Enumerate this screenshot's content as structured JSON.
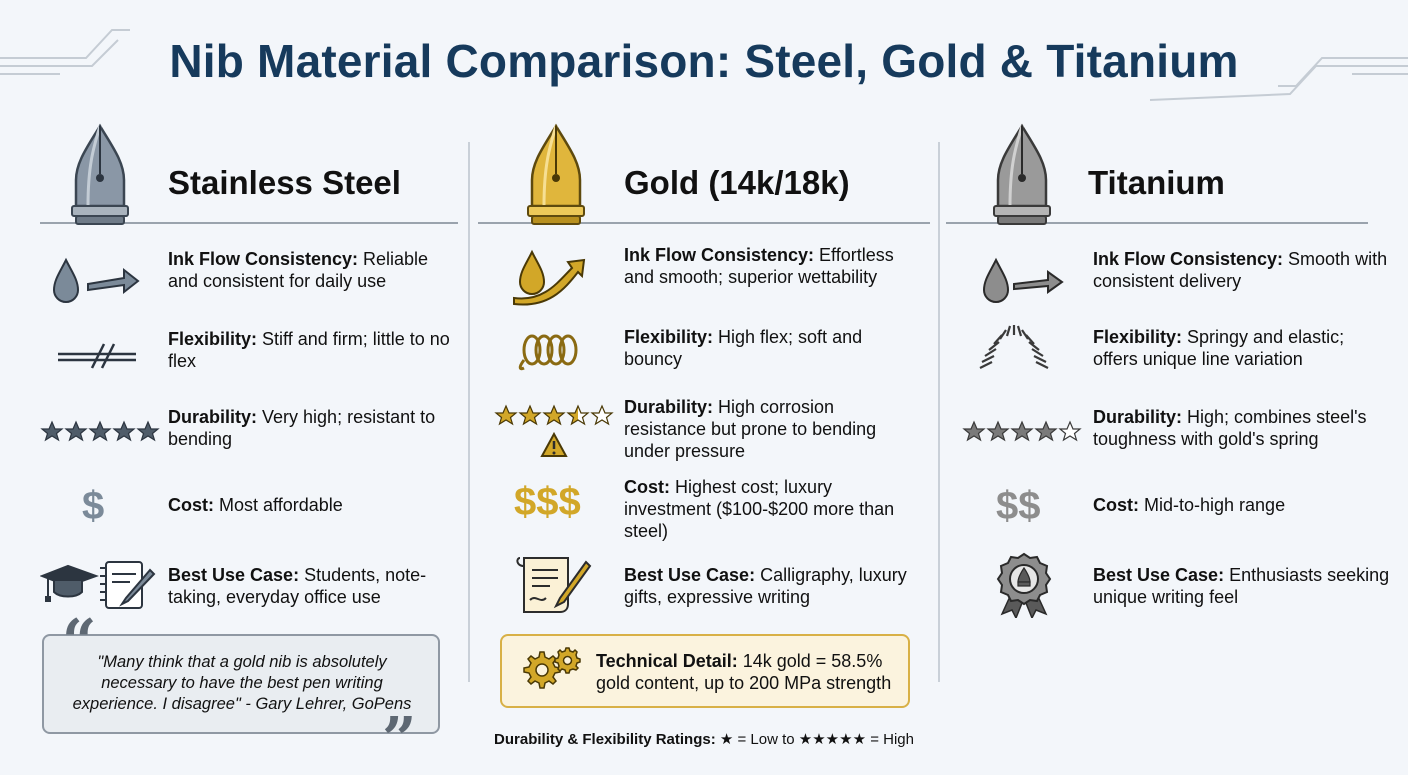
{
  "title": "Nib Material Comparison: Steel, Gold & Titanium",
  "colors": {
    "title": "#163a5c",
    "steel": "#7b8a99",
    "gold": "#d2a728",
    "titanium": "#8d8d8d",
    "gold_dark": "#a07b10"
  },
  "columns": [
    {
      "heading": "Stainless Steel",
      "nib_icon": "steel-nib-icon",
      "rows": [
        {
          "label": "Ink Flow Consistency:",
          "text": " Reliable and consistent for daily use",
          "icon": "ink-drop-arrow-icon"
        },
        {
          "label": "Flexibility:",
          "text": " Stiff and firm; little to no flex",
          "icon": "stiff-lines-icon"
        },
        {
          "label": "Durability:",
          "text": " Very high; resistant to bending",
          "icon": "star-rating-icon",
          "rating": 5
        },
        {
          "label": "Cost:",
          "text": " Most affordable",
          "icon": "dollar-icon",
          "symbol": "$"
        },
        {
          "label": "Best Use Case:",
          "text": " Students, note-taking, everyday office use",
          "icon": "graduation-cap-notebook-icon"
        }
      ]
    },
    {
      "heading": "Gold (14k/18k)",
      "nib_icon": "gold-nib-icon",
      "rows": [
        {
          "label": "Ink Flow Consistency:",
          "text": " Effortless and smooth; superior wettability",
          "icon": "ink-drop-curved-arrow-icon"
        },
        {
          "label": "Flexibility:",
          "text": " High flex; soft and bouncy",
          "icon": "coil-spring-icon"
        },
        {
          "label": "Durability:",
          "text": " High corrosion resistance but prone to bending under pressure",
          "icon": "star-rating-warning-icon",
          "rating": 3.5
        },
        {
          "label": "Cost:",
          "text": " Highest cost; luxury investment ($100-$200 more than steel)",
          "icon": "dollar-icon",
          "symbol": "$$$"
        },
        {
          "label": "Best Use Case:",
          "text": " Calligraphy, luxury gifts, expressive writing",
          "icon": "scroll-pen-icon"
        }
      ]
    },
    {
      "heading": "Titanium",
      "nib_icon": "titanium-nib-icon",
      "rows": [
        {
          "label": "Ink Flow Consistency:",
          "text": " Smooth with consistent delivery",
          "icon": "ink-drop-arrow-icon"
        },
        {
          "label": "Flexibility:",
          "text": " Springy and elastic; offers unique line variation",
          "icon": "spring-arc-icon"
        },
        {
          "label": "Durability:",
          "text": " High; combines steel's toughness with gold's spring",
          "icon": "star-rating-icon",
          "rating": 4
        },
        {
          "label": "Cost:",
          "text": " Mid-to-high range",
          "icon": "dollar-icon",
          "symbol": "$$"
        },
        {
          "label": "Best Use Case:",
          "text": " Enthusiasts seeking unique writing feel",
          "icon": "award-badge-icon"
        }
      ]
    }
  ],
  "quote": {
    "open_mark": "“",
    "close_mark": "”",
    "text": "\"Many think that a gold nib is absolutely necessary to have the best pen writing experience. I disagree\" - Gary Lehrer, GoPens"
  },
  "tech": {
    "label": "Technical Detail:",
    "text": " 14k gold = 58.5% gold content, up to 200 MPa strength",
    "icon": "gears-icon"
  },
  "legend": {
    "label": "Durability & Flexibility Ratings:",
    "text": " ★ = Low to ★★★★★ = High"
  }
}
